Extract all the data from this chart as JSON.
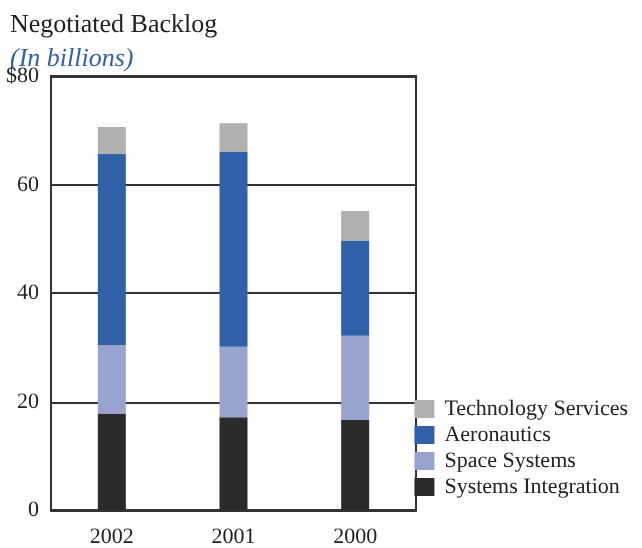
{
  "chart_data": {
    "type": "bar",
    "title": "Negotiated Backlog",
    "subtitle": "(In billions)",
    "categories": [
      "2002",
      "2001",
      "2000"
    ],
    "stacked": true,
    "ylim": [
      0,
      80
    ],
    "yticks": [
      0,
      20,
      40,
      60,
      {
        "value": 80,
        "label": "$80"
      }
    ],
    "grid": "y",
    "legend": "bottom right",
    "series": [
      {
        "name": "Systems Integration",
        "color": "#2b2b2b",
        "values": [
          17.8,
          17.1,
          16.6
        ]
      },
      {
        "name": "Space Systems",
        "color": "#98a3cf",
        "values": [
          12.6,
          13.0,
          15.5
        ]
      },
      {
        "name": "Aeronautics",
        "color": "#3060a8",
        "values": [
          35.2,
          36.0,
          17.6
        ]
      },
      {
        "name": "Technology Services",
        "color": "#b0b0b0",
        "values": [
          5.0,
          5.2,
          5.4
        ]
      }
    ]
  }
}
